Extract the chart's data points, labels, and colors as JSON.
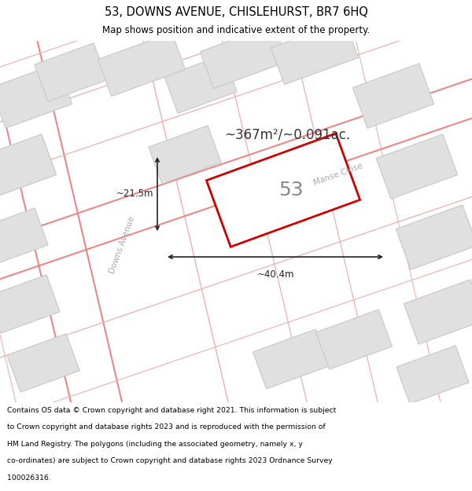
{
  "title_line1": "53, DOWNS AVENUE, CHISLEHURST, BR7 6HQ",
  "title_line2": "Map shows position and indicative extent of the property.",
  "footer_lines": [
    "Contains OS data © Crown copyright and database right 2021. This information is subject",
    "to Crown copyright and database rights 2023 and is reproduced with the permission of",
    "HM Land Registry. The polygons (including the associated geometry, namely x, y",
    "co-ordinates) are subject to Crown copyright and database rights 2023 Ordnance Survey",
    "100026316."
  ],
  "bg_color": "#ffffff",
  "map_bg": "#ffffff",
  "plot_fill": "#e0e0e0",
  "plot_edge": "#c8c8c8",
  "highlight_fill": "#ffffff",
  "highlight_stroke": "#cc0000",
  "road_line_color": "#e88888",
  "road_line_color2": "#ebb0b0",
  "area_text": "~367m²/~0.091ac.",
  "dim_width": "~40.4m",
  "dim_height": "~21.5m",
  "number_label": "53",
  "street1": "Downs Avenue",
  "street2": "Manse Close"
}
